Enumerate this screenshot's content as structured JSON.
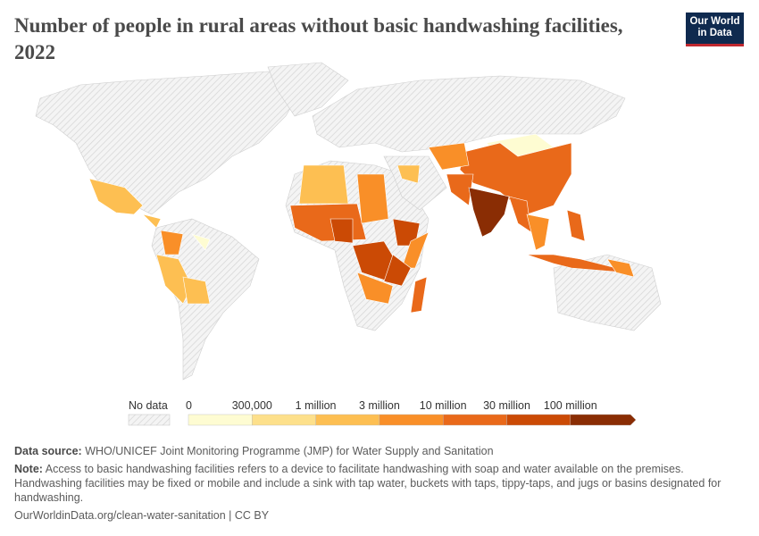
{
  "header": {
    "title": "Number of people in rural areas without basic handwashing facilities, 2022",
    "logo_line1": "Our World",
    "logo_line2": "in Data"
  },
  "legend": {
    "no_data_label": "No data",
    "bins": [
      {
        "label_start": "0",
        "label_end": "300,000",
        "color": "#fefcd2"
      },
      {
        "label_end": "1 million",
        "color": "#fde08b"
      },
      {
        "label_end": "3 million",
        "color": "#fdbf52"
      },
      {
        "label_end": "10 million",
        "color": "#f98f28"
      },
      {
        "label_end": "30 million",
        "color": "#e9691a"
      },
      {
        "label_end": "100 million",
        "color": "#cb4a05"
      },
      {
        "color": "#8a2d04"
      }
    ],
    "no_data_color": "#e6e6e6"
  },
  "map_data": {
    "regions": [
      {
        "id": "mexico",
        "bin": 2
      },
      {
        "id": "central-america",
        "bin": 2
      },
      {
        "id": "colombia",
        "bin": 3
      },
      {
        "id": "venezuela-guyana",
        "bin": 0
      },
      {
        "id": "peru-ecuador",
        "bin": 2
      },
      {
        "id": "bolivia",
        "bin": 2
      },
      {
        "id": "mongolia",
        "bin": 0
      },
      {
        "id": "china",
        "bin": 4
      },
      {
        "id": "central-asia",
        "bin": 3
      },
      {
        "id": "afghanistan-pakistan",
        "bin": 4
      },
      {
        "id": "india",
        "bin": 6
      },
      {
        "id": "bangladesh-myanmar",
        "bin": 4
      },
      {
        "id": "southeast-asia",
        "bin": 3
      },
      {
        "id": "indonesia",
        "bin": 4
      },
      {
        "id": "philippines",
        "bin": 4
      },
      {
        "id": "papua-new-guinea",
        "bin": 3
      },
      {
        "id": "sahel",
        "bin": 2
      },
      {
        "id": "west-africa",
        "bin": 4
      },
      {
        "id": "nigeria",
        "bin": 5
      },
      {
        "id": "sudan",
        "bin": 3
      },
      {
        "id": "ethiopia",
        "bin": 5
      },
      {
        "id": "somalia-kenya",
        "bin": 3
      },
      {
        "id": "dr-congo",
        "bin": 5
      },
      {
        "id": "tanzania",
        "bin": 5
      },
      {
        "id": "angola-zambia",
        "bin": 3
      },
      {
        "id": "madagascar",
        "bin": 4
      },
      {
        "id": "iraq-yemen",
        "bin": 2
      }
    ]
  },
  "footer": {
    "source_label": "Data source:",
    "source_text": "WHO/UNICEF Joint Monitoring Programme (JMP) for Water Supply and Sanitation",
    "note_label": "Note:",
    "note_text": "Access to basic handwashing facilities refers to a device to facilitate handwashing with soap and water available on the premises. Handwashing facilities may be fixed or mobile and include a sink with tap water, buckets with taps, tippy-taps, and jugs or basins designated for handwashing.",
    "url": "OurWorldinData.org/clean-water-sanitation | CC BY"
  }
}
